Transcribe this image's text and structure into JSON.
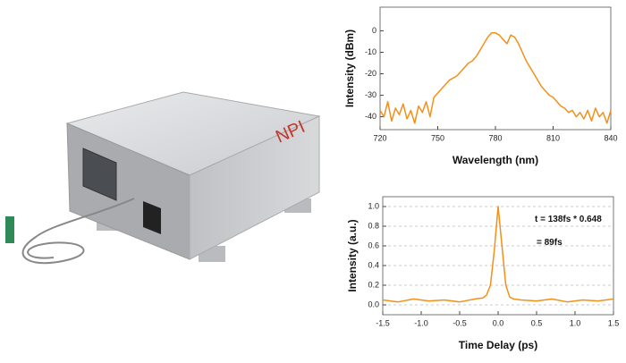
{
  "device_label": "NPI",
  "chart_data": [
    {
      "type": "line",
      "xlabel": "Wavelength (nm)",
      "ylabel": "Intensity (dBm)",
      "x": [
        720,
        722,
        724,
        726,
        728,
        730,
        732,
        734,
        736,
        738,
        740,
        742,
        744,
        746,
        748,
        750,
        752,
        754,
        756,
        758,
        760,
        762,
        764,
        766,
        768,
        770,
        772,
        774,
        776,
        778,
        780,
        782,
        784,
        786,
        788,
        790,
        792,
        794,
        796,
        798,
        800,
        802,
        804,
        806,
        808,
        810,
        812,
        814,
        816,
        818,
        820,
        822,
        824,
        826,
        828,
        830,
        832,
        834,
        836,
        838,
        840
      ],
      "series": [
        {
          "color": "#f39019",
          "values": [
            -37,
            -40,
            -33,
            -42,
            -36,
            -39,
            -34,
            -41,
            -37,
            -43,
            -35,
            -38,
            -33,
            -40,
            -31,
            -29,
            -27,
            -25,
            -23,
            -22,
            -21,
            -19,
            -17,
            -15,
            -14,
            -12,
            -9,
            -6,
            -3,
            -1,
            -1,
            -2,
            -4,
            -6,
            -2,
            -3,
            -6,
            -10,
            -14,
            -17,
            -20,
            -23,
            -26,
            -28,
            -30,
            -31,
            -33,
            -35,
            -36,
            -38,
            -37,
            -40,
            -38,
            -41,
            -37,
            -42,
            -36,
            -40,
            -38,
            -43,
            -37
          ]
        }
      ],
      "xlim": [
        720,
        840
      ],
      "xticks": [
        720,
        750,
        780,
        810,
        840
      ],
      "ylim": [
        -46,
        11
      ],
      "yticks": [
        0,
        -10,
        -20,
        -30,
        -40
      ],
      "grid": false
    },
    {
      "type": "line",
      "xlabel": "Time Delay (ps)",
      "ylabel": "Intensity (a.u.)",
      "annotations": [
        "t = 138fs * 0.648",
        "= 89fs"
      ],
      "x": [
        -1.5,
        -1.3,
        -1.1,
        -0.9,
        -0.7,
        -0.5,
        -0.3,
        -0.2,
        -0.15,
        -0.1,
        -0.05,
        0,
        0.05,
        0.1,
        0.15,
        0.2,
        0.3,
        0.5,
        0.7,
        0.9,
        1.1,
        1.3,
        1.5
      ],
      "series": [
        {
          "color": "#f39019",
          "values": [
            0.05,
            0.03,
            0.06,
            0.04,
            0.05,
            0.03,
            0.06,
            0.07,
            0.1,
            0.2,
            0.55,
            1.0,
            0.6,
            0.2,
            0.08,
            0.06,
            0.05,
            0.04,
            0.06,
            0.03,
            0.05,
            0.04,
            0.06
          ]
        }
      ],
      "xlim": [
        -1.5,
        1.5
      ],
      "xticks": [
        {
          "value": -1.5,
          "label": "-1.5"
        },
        {
          "value": -1.0,
          "label": "-1.0"
        },
        {
          "value": -0.5,
          "label": "-0.5"
        },
        {
          "value": 0,
          "label": "0.0"
        },
        {
          "value": 0.5,
          "label": "0.5"
        },
        {
          "value": 1.0,
          "label": "1.0"
        },
        {
          "value": 1.5,
          "label": "1.5"
        }
      ],
      "ylim": [
        -0.1,
        1.1
      ],
      "yticks": [
        {
          "value": 0,
          "label": "0.0"
        },
        0.2,
        0.4,
        0.6,
        0.8,
        {
          "value": 1.0,
          "label": "1.0"
        }
      ],
      "grid": true
    }
  ]
}
